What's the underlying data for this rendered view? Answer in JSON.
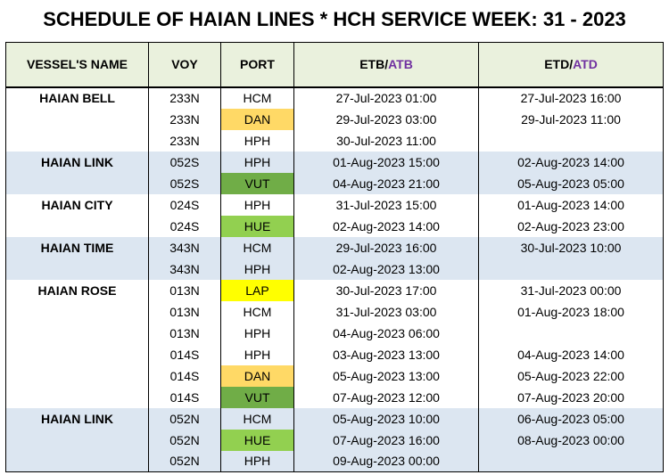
{
  "title": "SCHEDULE OF HAIAN LINES * HCH SERVICE WEEK: 31 - 2023",
  "headers": {
    "vessel": "VESSEL'S NAME",
    "voy": "VOY",
    "port": "PORT",
    "etb_prefix": "ETB/",
    "etb_suffix": "ATB",
    "etd_prefix": "ETD/",
    "etd_suffix": "ATD"
  },
  "colors": {
    "header_bg": "#eaf1dd",
    "row_shade": "#dce6f1",
    "port_yellow": "#ffd966",
    "port_dark_green": "#70ad47",
    "port_light_green": "#92d050",
    "port_bright_yellow": "#ffff00",
    "actual_text": "#7030a0"
  },
  "rows": [
    {
      "vessel": "HAIAN BELL",
      "voy": "233N",
      "port": "HCM",
      "etb": "27-Jul-2023 01:00",
      "etd": "27-Jul-2023 16:00",
      "shade": false,
      "port_color": ""
    },
    {
      "vessel": "",
      "voy": "233N",
      "port": "DAN",
      "etb": "29-Jul-2023 03:00",
      "etd": "29-Jul-2023 11:00",
      "shade": false,
      "port_color": "yellow"
    },
    {
      "vessel": "",
      "voy": "233N",
      "port": "HPH",
      "etb": "30-Jul-2023 11:00",
      "etd": "",
      "shade": false,
      "port_color": ""
    },
    {
      "vessel": "HAIAN LINK",
      "voy": "052S",
      "port": "HPH",
      "etb": "01-Aug-2023 15:00",
      "etd": "02-Aug-2023 14:00",
      "shade": true,
      "port_color": ""
    },
    {
      "vessel": "",
      "voy": "052S",
      "port": "VUT",
      "etb": "04-Aug-2023 21:00",
      "etd": "05-Aug-2023 05:00",
      "shade": true,
      "port_color": "darkgreen"
    },
    {
      "vessel": "HAIAN CITY",
      "voy": "024S",
      "port": "HPH",
      "etb": "31-Jul-2023 15:00",
      "etd": "01-Aug-2023 14:00",
      "shade": false,
      "port_color": ""
    },
    {
      "vessel": "",
      "voy": "024S",
      "port": "HUE",
      "etb": "02-Aug-2023 14:00",
      "etd": "02-Aug-2023 23:00",
      "shade": false,
      "port_color": "lightgreen"
    },
    {
      "vessel": "HAIAN TIME",
      "voy": "343N",
      "port": "HCM",
      "etb": "29-Jul-2023 16:00",
      "etd": "30-Jul-2023 10:00",
      "shade": true,
      "port_color": ""
    },
    {
      "vessel": "",
      "voy": "343N",
      "port": "HPH",
      "etb": "02-Aug-2023 13:00",
      "etd": "",
      "shade": true,
      "port_color": ""
    },
    {
      "vessel": "HAIAN ROSE",
      "voy": "013N",
      "port": "LAP",
      "etb": "30-Jul-2023 17:00",
      "etd": "31-Jul-2023 00:00",
      "shade": false,
      "port_color": "brightyellow"
    },
    {
      "vessel": "",
      "voy": "013N",
      "port": "HCM",
      "etb": "31-Jul-2023 03:00",
      "etd": "01-Aug-2023 18:00",
      "shade": false,
      "port_color": ""
    },
    {
      "vessel": "",
      "voy": "013N",
      "port": "HPH",
      "etb": "04-Aug-2023 06:00",
      "etd": "",
      "shade": false,
      "port_color": ""
    },
    {
      "vessel": "",
      "voy": "014S",
      "port": "HPH",
      "etb": "03-Aug-2023 13:00",
      "etd": "04-Aug-2023 14:00",
      "shade": false,
      "port_color": ""
    },
    {
      "vessel": "",
      "voy": "014S",
      "port": "DAN",
      "etb": "05-Aug-2023 13:00",
      "etd": "05-Aug-2023 22:00",
      "shade": false,
      "port_color": "yellow"
    },
    {
      "vessel": "",
      "voy": "014S",
      "port": "VUT",
      "etb": "07-Aug-2023 12:00",
      "etd": "07-Aug-2023 20:00",
      "shade": false,
      "port_color": "darkgreen"
    },
    {
      "vessel": "HAIAN LINK",
      "voy": "052N",
      "port": "HCM",
      "etb": "05-Aug-2023 10:00",
      "etd": "06-Aug-2023 05:00",
      "shade": true,
      "port_color": ""
    },
    {
      "vessel": "",
      "voy": "052N",
      "port": "HUE",
      "etb": "07-Aug-2023 16:00",
      "etd": "08-Aug-2023 00:00",
      "shade": true,
      "port_color": "lightgreen"
    },
    {
      "vessel": "",
      "voy": "052N",
      "port": "HPH",
      "etb": "09-Aug-2023 00:00",
      "etd": "",
      "shade": true,
      "port_color": ""
    }
  ]
}
